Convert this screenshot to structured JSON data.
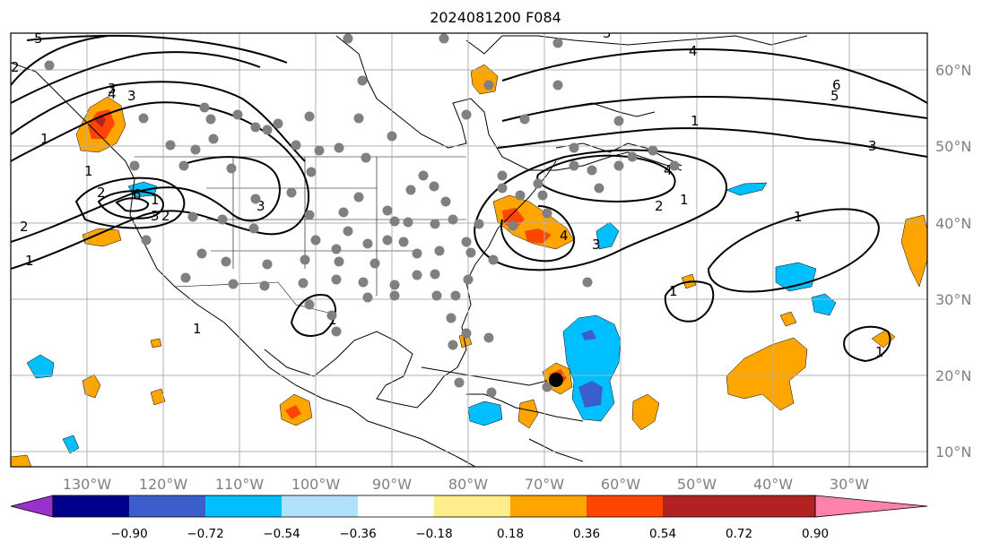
{
  "title": "2024081200 F084",
  "map": {
    "latitude_labels": [
      "60°N",
      "50°N",
      "40°N",
      "30°N",
      "20°N",
      "10°N"
    ],
    "longitude_labels": [
      "130°W",
      "120°W",
      "110°W",
      "100°W",
      "90°W",
      "80°W",
      "70°W",
      "60°W",
      "50°W",
      "40°W",
      "30°W"
    ],
    "contour_labels": [
      "5",
      "4",
      "3",
      "2",
      "1",
      "1",
      "2",
      "3",
      "6",
      "3",
      "2",
      "1",
      "4",
      "3",
      "2",
      "1",
      "1",
      "3",
      "1",
      "1",
      "4",
      "6",
      "5",
      "1",
      "2",
      "3",
      "4",
      "5",
      "1",
      "1",
      "1"
    ],
    "colors": {
      "land_outline": "#000000",
      "grid": "#b0b0b0",
      "station_dot": "#808080",
      "storm_center": "#000000"
    }
  },
  "colorbar": {
    "labels": [
      "−0.90",
      "−0.72",
      "−0.54",
      "−0.36",
      "−0.18",
      "0.18",
      "0.36",
      "0.54",
      "0.72",
      "0.90"
    ],
    "colors": [
      "#9932cc",
      "#00008b",
      "#3a5fcd",
      "#00bfff",
      "#b0e2ff",
      "#ffffff",
      "#ffec8b",
      "#ffa500",
      "#ff4500",
      "#b22222",
      "#ff82ab"
    ]
  }
}
